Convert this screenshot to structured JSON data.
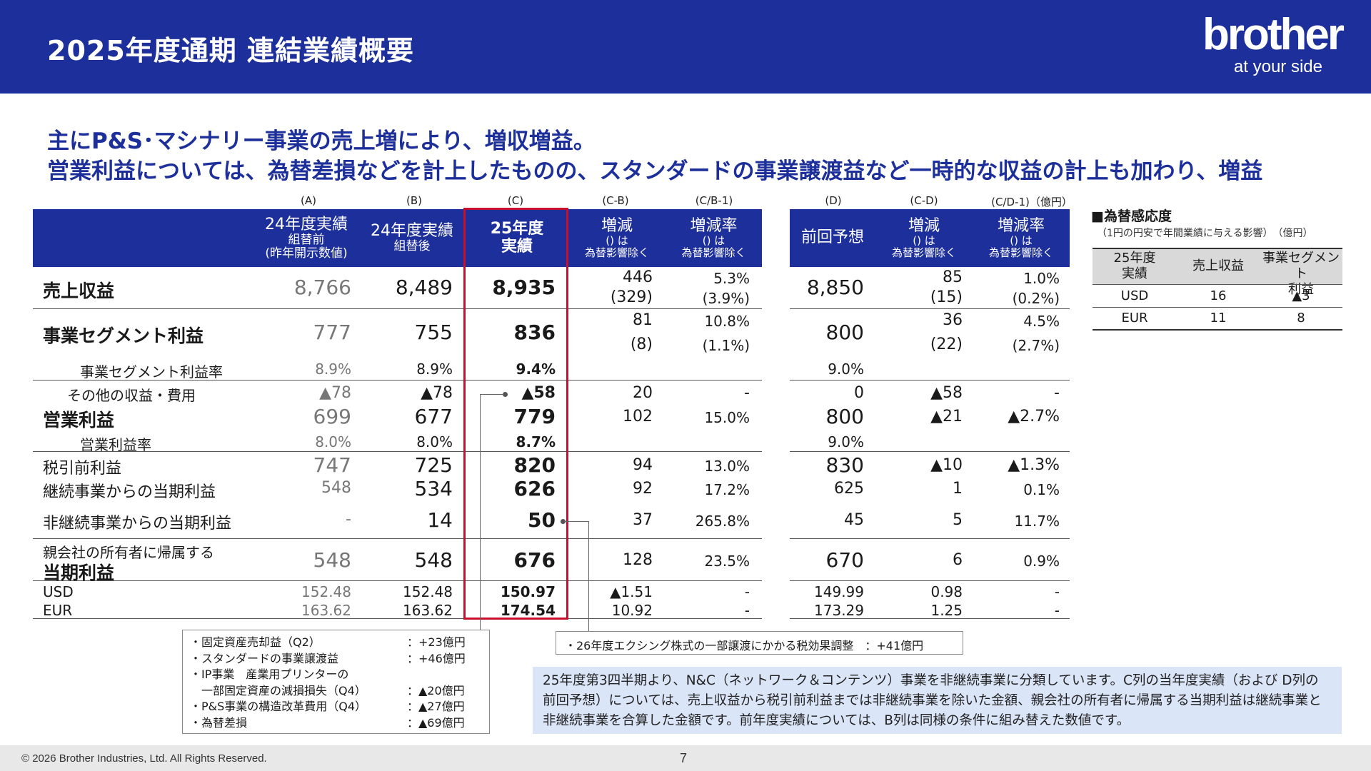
{
  "header": {
    "title": "2025年度通期 連結業績概要"
  },
  "logo": {
    "word": "brother",
    "tagline": "at your side"
  },
  "headline": {
    "line1": "主にP&S･マシナリー事業の売上増により、増収増益。",
    "line2": "営業利益については、為替差損などを計上したものの、スタンダードの事業譲渡益など一時的な収益の計上も加わり、増益"
  },
  "columns": {
    "letters": [
      "(A)",
      "(B)",
      "(C)",
      "(C-B)",
      "(C/B-1)",
      "(D)",
      "(C-D)",
      "(C/D-1)（億円）"
    ],
    "a": {
      "l1": "24年度実績",
      "l2": "組替前",
      "l3": "(昨年開示数値)"
    },
    "b": {
      "l1": "24年度実績",
      "l2": "組替後"
    },
    "c": {
      "l1": "25年度",
      "l2": "実績"
    },
    "cb": {
      "l1": "増減",
      "l2": "() は",
      "l3": "為替影響除く"
    },
    "cb1": {
      "l1": "増減率",
      "l2": "() は",
      "l3": "為替影響除く"
    },
    "d": {
      "l1": "前回予想"
    },
    "cd": {
      "l1": "増減",
      "l2": "() は",
      "l3": "為替影響除く"
    },
    "cd1": {
      "l1": "増減率",
      "l2": "() は",
      "l3": "為替影響除く"
    }
  },
  "rows": {
    "revenue": {
      "label": "売上収益",
      "a": "8,766",
      "b": "8,489",
      "c": "8,935",
      "cb": "446",
      "cb_fx": "(329)",
      "cb1": "5.3%",
      "cb1_fx": "(3.9%)",
      "d": "8,850",
      "cd": "85",
      "cd_fx": "(15)",
      "cd1": "1.0%",
      "cd1_fx": "(0.2%)"
    },
    "segment": {
      "label": "事業セグメント利益",
      "a": "777",
      "b": "755",
      "c": "836",
      "cb": "81",
      "cb_fx": "(8)",
      "cb1": "10.8%",
      "cb1_fx": "(1.1%)",
      "d": "800",
      "cd": "36",
      "cd_fx": "(22)",
      "cd1": "4.5%",
      "cd1_fx": "(2.7%)"
    },
    "segment_rate": {
      "label": "事業セグメント利益率",
      "a": "8.9%",
      "b": "8.9%",
      "c": "9.4%",
      "d": "9.0%"
    },
    "other": {
      "label": "その他の収益・費用",
      "a": "▲78",
      "b": "▲78",
      "c": "▲58",
      "cb": "20",
      "cb1": "-",
      "d": "0",
      "cd": "▲58",
      "cd1": "-"
    },
    "op": {
      "label": "営業利益",
      "a": "699",
      "b": "677",
      "c": "779",
      "cb": "102",
      "cb1": "15.0%",
      "d": "800",
      "cd": "▲21",
      "cd1": "▲2.7%"
    },
    "op_rate": {
      "label": "営業利益率",
      "a": "8.0%",
      "b": "8.0%",
      "c": "8.7%",
      "d": "9.0%"
    },
    "pretax": {
      "label": "税引前利益",
      "a": "747",
      "b": "725",
      "c": "820",
      "cb": "94",
      "cb1": "13.0%",
      "d": "830",
      "cd": "▲10",
      "cd1": "▲1.3%"
    },
    "cont": {
      "label": "継続事業からの当期利益",
      "a": "548",
      "b": "534",
      "c": "626",
      "cb": "92",
      "cb1": "17.2%",
      "d": "625",
      "cd": "1",
      "cd1": "0.1%"
    },
    "discont": {
      "label": "非継続事業からの当期利益",
      "a": "-",
      "b": "14",
      "c": "50",
      "cb": "37",
      "cb1": "265.8%",
      "d": "45",
      "cd": "5",
      "cd1": "11.7%"
    },
    "parent": {
      "label1": "親会社の所有者に帰属する",
      "label2": "当期利益",
      "a": "548",
      "b": "548",
      "c": "676",
      "cb": "128",
      "cb1": "23.5%",
      "d": "670",
      "cd": "6",
      "cd1": "0.9%"
    },
    "usd": {
      "label": "USD",
      "a": "152.48",
      "b": "152.48",
      "c": "150.97",
      "cb": "▲1.51",
      "cb1": "-",
      "d": "149.99",
      "cd": "0.98",
      "cd1": "-"
    },
    "eur": {
      "label": "EUR",
      "a": "163.62",
      "b": "163.62",
      "c": "174.54",
      "cb": "10.92",
      "cb1": "-",
      "d": "173.29",
      "cd": "1.25",
      "cd1": "-"
    }
  },
  "note_other": [
    {
      "k": "・固定資産売却益（Q2）",
      "v": "：+23億円"
    },
    {
      "k": "・スタンダードの事業譲渡益",
      "v": "：+46億円"
    },
    {
      "k": "・IP事業　産業用プリンターの",
      "v": ""
    },
    {
      "k": "　一部固定資産の減損損失（Q4）",
      "v": "：▲20億円"
    },
    {
      "k": "・P&S事業の構造改革費用（Q4）",
      "v": "：▲27億円"
    },
    {
      "k": "・為替差損",
      "v": "：▲69億円"
    }
  ],
  "note_discont": "・26年度エクシング株式の一部譲渡にかかる税効果調整　：+41億円",
  "info": "25年度第3四半期より、N&C（ネットワーク＆コンテンツ）事業を非継続事業に分類しています。C列の当年度実績（および D列の前回予想）については、売上収益から税引前利益までは非継続事業を除いた金額、親会社の所有者に帰属する当期利益は継続事業と非継続事業を合算した金額です。前年度実績については、B列は同様の条件に組み替えた数値です。",
  "fx": {
    "title": "■為替感応度",
    "subtitle": "（1円の円安で年間業績に与える影響）　（億円）",
    "head": {
      "c1a": "25年度",
      "c1b": "実績",
      "c2": "売上収益",
      "c3a": "事業セグメント",
      "c3b": "利益"
    },
    "rows": [
      {
        "cur": "USD",
        "rev": "16",
        "seg": "▲3"
      },
      {
        "cur": "EUR",
        "rev": "11",
        "seg": "8"
      }
    ]
  },
  "footer": {
    "copyright": "© 2026 Brother Industries, Ltd. All Rights Reserved.",
    "page": "7"
  }
}
